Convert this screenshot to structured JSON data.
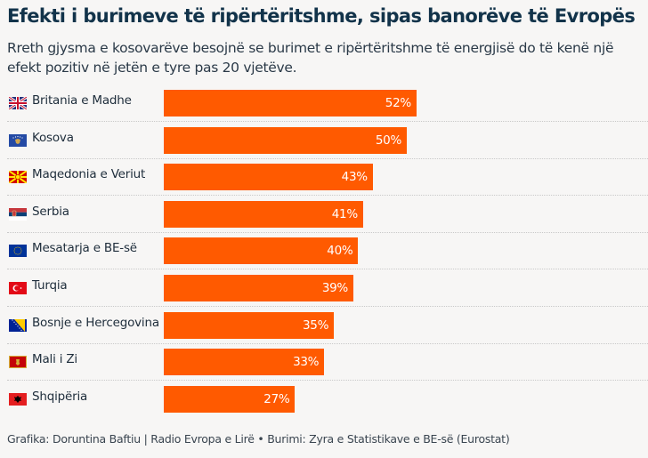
{
  "header": {
    "title": "Efekti i burimeve të ripërtëritshme, sipas banorëve të Evropës",
    "subtitle": "Rreth gjysma e kosovarëve besojnë se burimet e ripërtëritshme të energjisë do të kenë një efekt pozitiv në jetën e tyre pas 20 vjetëve."
  },
  "footer": {
    "credit": "Grafika: Doruntina Baftiu | Radio Evropa e Lirë • Burimi: Zyra e Statistikave e BE-së (Eurostat)"
  },
  "colors": {
    "bar": "#ff5a00",
    "title": "#12334a",
    "background": "#f7f6f5"
  },
  "chart_data": {
    "type": "bar",
    "orientation": "horizontal",
    "title": "Efekti i burimeve të ripërtëritshme, sipas banorëve të Evropës",
    "subtitle": "Rreth gjysma e kosovarëve besojnë se burimet e ripërtëritshme të energjisë do të kenë një efekt pozitiv në jetën e tyre pas 20 vjetëve.",
    "xlabel": "",
    "ylabel": "",
    "unit": "%",
    "xlim": [
      0,
      100
    ],
    "grid": false,
    "categories": [
      "Britania e Madhe",
      "Kosova",
      "Maqedonia e Veriut",
      "Serbia",
      "Mesatarja e BE-së",
      "Turqia",
      "Bosnje e Hercegovina",
      "Mali i Zi",
      "Shqipëria"
    ],
    "flags": [
      "uk-flag-icon",
      "kosovo-flag-icon",
      "north-macedonia-flag-icon",
      "serbia-flag-icon",
      "eu-flag-icon",
      "turkey-flag-icon",
      "bosnia-flag-icon",
      "montenegro-flag-icon",
      "albania-flag-icon"
    ],
    "values": [
      52,
      50,
      43,
      41,
      40,
      39,
      35,
      33,
      27
    ],
    "value_labels": [
      "52%",
      "50%",
      "43%",
      "41%",
      "40%",
      "39%",
      "35%",
      "33%",
      "27%"
    ]
  }
}
